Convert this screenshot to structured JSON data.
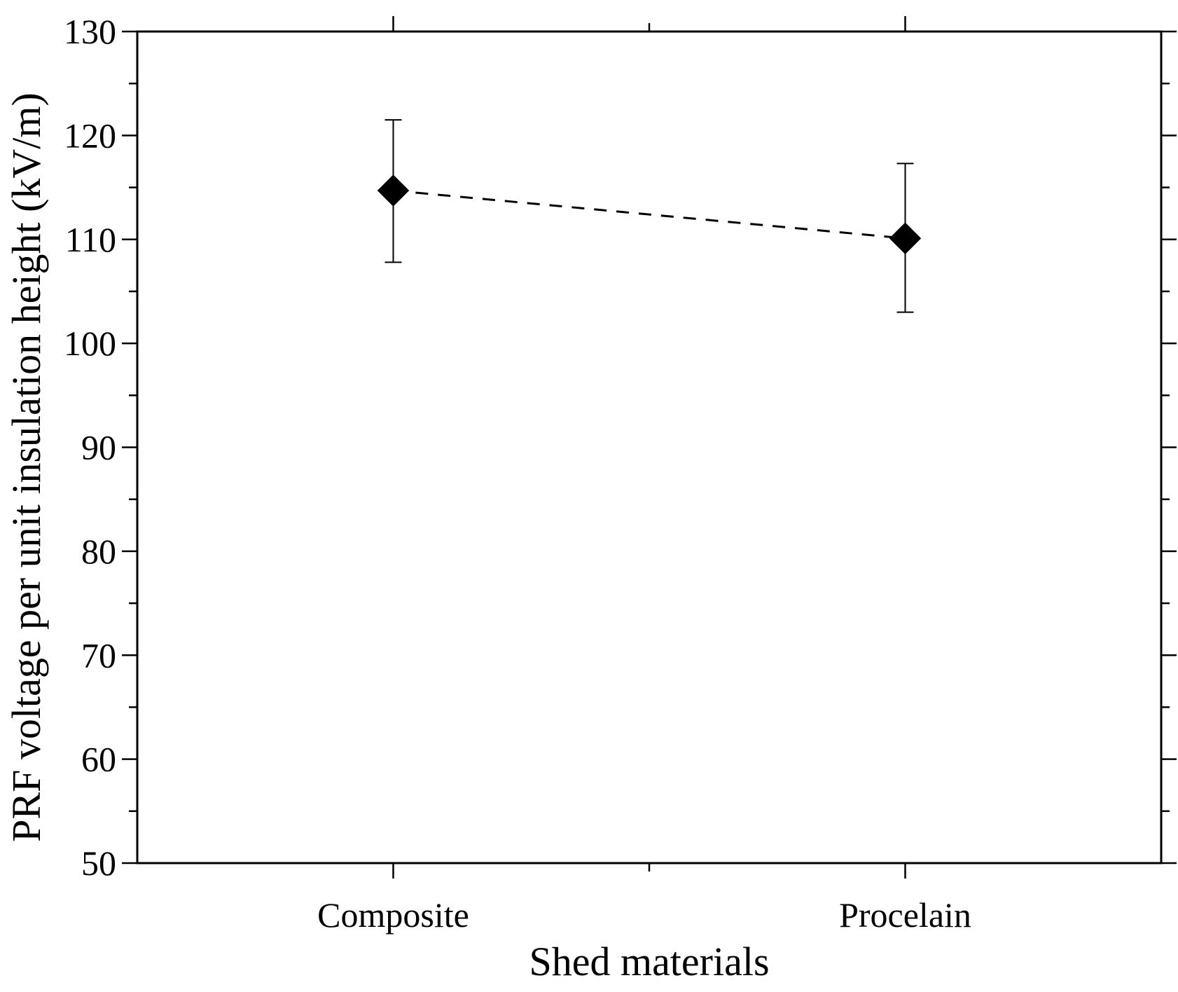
{
  "chart_data": {
    "type": "scatter",
    "title": "",
    "xlabel": "Shed materials",
    "ylabel": "PRF voltage per unit insulation height (kV/m)",
    "categories": [
      "Composite",
      "Procelain"
    ],
    "series": [
      {
        "name": "PRF voltage",
        "marker": "diamond",
        "line_style": "dashed",
        "color": "#000000",
        "values": [
          114.7,
          110.1
        ],
        "error_plus": [
          6.8,
          7.2
        ],
        "error_minus": [
          6.9,
          7.1
        ]
      }
    ],
    "ylim": [
      50,
      130
    ],
    "yticks": [
      50,
      60,
      70,
      80,
      90,
      100,
      110,
      120,
      130
    ],
    "y_minor_step": 5,
    "grid": false,
    "legend": "none"
  }
}
